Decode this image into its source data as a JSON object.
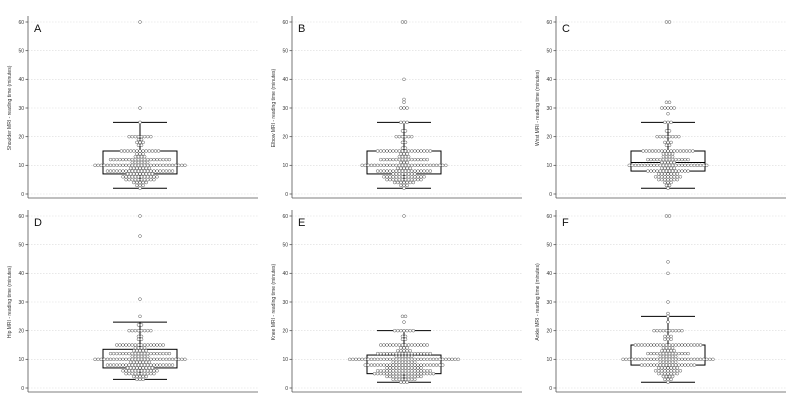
{
  "chart_data": [
    {
      "type": "box",
      "panel": "A",
      "ylabel": "Shoulder MRI - reading time (minutes)",
      "ylim": [
        0,
        60
      ],
      "yticks": [
        0,
        10,
        20,
        30,
        40,
        50,
        60
      ],
      "grid": true,
      "box": {
        "whisker_low": 2,
        "q1": 7,
        "median": 10,
        "q3": 15,
        "whisker_high": 25
      },
      "points": [
        {
          "y": 60,
          "count": 1
        },
        {
          "y": 30,
          "count": 1
        },
        {
          "y": 25,
          "count": 1
        },
        {
          "y": 20,
          "count": 8
        },
        {
          "y": 19,
          "count": 2
        },
        {
          "y": 18,
          "count": 3
        },
        {
          "y": 17,
          "count": 2
        },
        {
          "y": 15,
          "count": 13
        },
        {
          "y": 14,
          "count": 3
        },
        {
          "y": 13,
          "count": 4
        },
        {
          "y": 12,
          "count": 20
        },
        {
          "y": 11,
          "count": 6
        },
        {
          "y": 10,
          "count": 30
        },
        {
          "y": 9,
          "count": 7
        },
        {
          "y": 8,
          "count": 22
        },
        {
          "y": 7,
          "count": 9
        },
        {
          "y": 6,
          "count": 12
        },
        {
          "y": 5,
          "count": 10
        },
        {
          "y": 4,
          "count": 5
        },
        {
          "y": 3,
          "count": 3
        },
        {
          "y": 2,
          "count": 1
        }
      ]
    },
    {
      "type": "box",
      "panel": "B",
      "ylabel": "Elbow MRI - reading time (minutes)",
      "ylim": [
        0,
        60
      ],
      "yticks": [
        0,
        10,
        20,
        30,
        40,
        50,
        60
      ],
      "grid": true,
      "box": {
        "whisker_low": 2,
        "q1": 7,
        "median": 10,
        "q3": 15,
        "whisker_high": 25
      },
      "points": [
        {
          "y": 60,
          "count": 2
        },
        {
          "y": 40,
          "count": 1
        },
        {
          "y": 33,
          "count": 1
        },
        {
          "y": 32,
          "count": 1
        },
        {
          "y": 30,
          "count": 3
        },
        {
          "y": 25,
          "count": 3
        },
        {
          "y": 22,
          "count": 2
        },
        {
          "y": 20,
          "count": 6
        },
        {
          "y": 18,
          "count": 2
        },
        {
          "y": 16,
          "count": 2
        },
        {
          "y": 15,
          "count": 18
        },
        {
          "y": 14,
          "count": 3
        },
        {
          "y": 13,
          "count": 4
        },
        {
          "y": 12,
          "count": 16
        },
        {
          "y": 11,
          "count": 3
        },
        {
          "y": 10,
          "count": 28
        },
        {
          "y": 9,
          "count": 5
        },
        {
          "y": 8,
          "count": 18
        },
        {
          "y": 7,
          "count": 8
        },
        {
          "y": 6,
          "count": 14
        },
        {
          "y": 5,
          "count": 12
        },
        {
          "y": 4,
          "count": 7
        },
        {
          "y": 3,
          "count": 3
        },
        {
          "y": 2,
          "count": 1
        }
      ]
    },
    {
      "type": "box",
      "panel": "C",
      "ylabel": "Wrist MRI - reading time (minutes)",
      "ylim": [
        0,
        60
      ],
      "yticks": [
        0,
        10,
        20,
        30,
        40,
        50,
        60
      ],
      "grid": true,
      "box": {
        "whisker_low": 2,
        "q1": 8,
        "median": 11,
        "q3": 15,
        "whisker_high": 25
      },
      "points": [
        {
          "y": 60,
          "count": 2
        },
        {
          "y": 32,
          "count": 2
        },
        {
          "y": 30,
          "count": 5
        },
        {
          "y": 28,
          "count": 1
        },
        {
          "y": 25,
          "count": 3
        },
        {
          "y": 22,
          "count": 2
        },
        {
          "y": 20,
          "count": 8
        },
        {
          "y": 18,
          "count": 3
        },
        {
          "y": 17,
          "count": 2
        },
        {
          "y": 15,
          "count": 17
        },
        {
          "y": 14,
          "count": 4
        },
        {
          "y": 13,
          "count": 4
        },
        {
          "y": 12,
          "count": 14
        },
        {
          "y": 11,
          "count": 5
        },
        {
          "y": 10,
          "count": 26
        },
        {
          "y": 9,
          "count": 5
        },
        {
          "y": 8,
          "count": 14
        },
        {
          "y": 7,
          "count": 7
        },
        {
          "y": 6,
          "count": 9
        },
        {
          "y": 5,
          "count": 7
        },
        {
          "y": 4,
          "count": 3
        },
        {
          "y": 3,
          "count": 2
        },
        {
          "y": 2,
          "count": 1
        }
      ]
    },
    {
      "type": "box",
      "panel": "D",
      "ylabel": "Hip MRI - reading time (minutes)",
      "ylim": [
        0,
        60
      ],
      "yticks": [
        0,
        10,
        20,
        30,
        40,
        50,
        60
      ],
      "grid": true,
      "box": {
        "whisker_low": 3,
        "q1": 7,
        "median": 10,
        "q3": 13.5,
        "whisker_high": 23
      },
      "points": [
        {
          "y": 60,
          "count": 1
        },
        {
          "y": 53,
          "count": 1
        },
        {
          "y": 31,
          "count": 1
        },
        {
          "y": 25,
          "count": 1
        },
        {
          "y": 22,
          "count": 2
        },
        {
          "y": 20,
          "count": 8
        },
        {
          "y": 18,
          "count": 2
        },
        {
          "y": 17,
          "count": 2
        },
        {
          "y": 15,
          "count": 16
        },
        {
          "y": 14,
          "count": 4
        },
        {
          "y": 13,
          "count": 5
        },
        {
          "y": 12,
          "count": 20
        },
        {
          "y": 11,
          "count": 6
        },
        {
          "y": 10,
          "count": 30
        },
        {
          "y": 9,
          "count": 7
        },
        {
          "y": 8,
          "count": 22
        },
        {
          "y": 7,
          "count": 9
        },
        {
          "y": 6,
          "count": 12
        },
        {
          "y": 5,
          "count": 10
        },
        {
          "y": 4,
          "count": 5
        },
        {
          "y": 3,
          "count": 3
        }
      ]
    },
    {
      "type": "box",
      "panel": "E",
      "ylabel": "Knee MRI - reading time (minutes)",
      "ylim": [
        0,
        60
      ],
      "yticks": [
        0,
        10,
        20,
        30,
        40,
        50,
        60
      ],
      "grid": true,
      "box": {
        "whisker_low": 2,
        "q1": 5,
        "median": 8,
        "q3": 11.5,
        "whisker_high": 20
      },
      "points": [
        {
          "y": 60,
          "count": 1
        },
        {
          "y": 25,
          "count": 2
        },
        {
          "y": 23,
          "count": 1
        },
        {
          "y": 20,
          "count": 7
        },
        {
          "y": 18,
          "count": 2
        },
        {
          "y": 17,
          "count": 2
        },
        {
          "y": 15,
          "count": 16
        },
        {
          "y": 14,
          "count": 3
        },
        {
          "y": 13,
          "count": 5
        },
        {
          "y": 12,
          "count": 18
        },
        {
          "y": 11,
          "count": 6
        },
        {
          "y": 10,
          "count": 36
        },
        {
          "y": 9,
          "count": 8
        },
        {
          "y": 8,
          "count": 26
        },
        {
          "y": 7,
          "count": 12
        },
        {
          "y": 6,
          "count": 18
        },
        {
          "y": 5,
          "count": 20
        },
        {
          "y": 4,
          "count": 12
        },
        {
          "y": 3,
          "count": 8
        },
        {
          "y": 2,
          "count": 3
        }
      ]
    },
    {
      "type": "box",
      "panel": "F",
      "ylabel": "Ankle MRI - reading time (minutes)",
      "ylim": [
        0,
        60
      ],
      "yticks": [
        0,
        10,
        20,
        30,
        40,
        50,
        60
      ],
      "grid": true,
      "box": {
        "whisker_low": 2,
        "q1": 8,
        "median": 10,
        "q3": 15,
        "whisker_high": 25
      },
      "points": [
        {
          "y": 60,
          "count": 2
        },
        {
          "y": 44,
          "count": 1
        },
        {
          "y": 40,
          "count": 1
        },
        {
          "y": 30,
          "count": 1
        },
        {
          "y": 26,
          "count": 1
        },
        {
          "y": 25,
          "count": 1
        },
        {
          "y": 23,
          "count": 1
        },
        {
          "y": 20,
          "count": 10
        },
        {
          "y": 18,
          "count": 3
        },
        {
          "y": 17,
          "count": 3
        },
        {
          "y": 15,
          "count": 22
        },
        {
          "y": 14,
          "count": 4
        },
        {
          "y": 13,
          "count": 5
        },
        {
          "y": 12,
          "count": 14
        },
        {
          "y": 11,
          "count": 6
        },
        {
          "y": 10,
          "count": 30
        },
        {
          "y": 9,
          "count": 6
        },
        {
          "y": 8,
          "count": 18
        },
        {
          "y": 7,
          "count": 7
        },
        {
          "y": 6,
          "count": 9
        },
        {
          "y": 5,
          "count": 7
        },
        {
          "y": 4,
          "count": 4
        },
        {
          "y": 3,
          "count": 3
        },
        {
          "y": 2,
          "count": 1
        }
      ]
    }
  ]
}
